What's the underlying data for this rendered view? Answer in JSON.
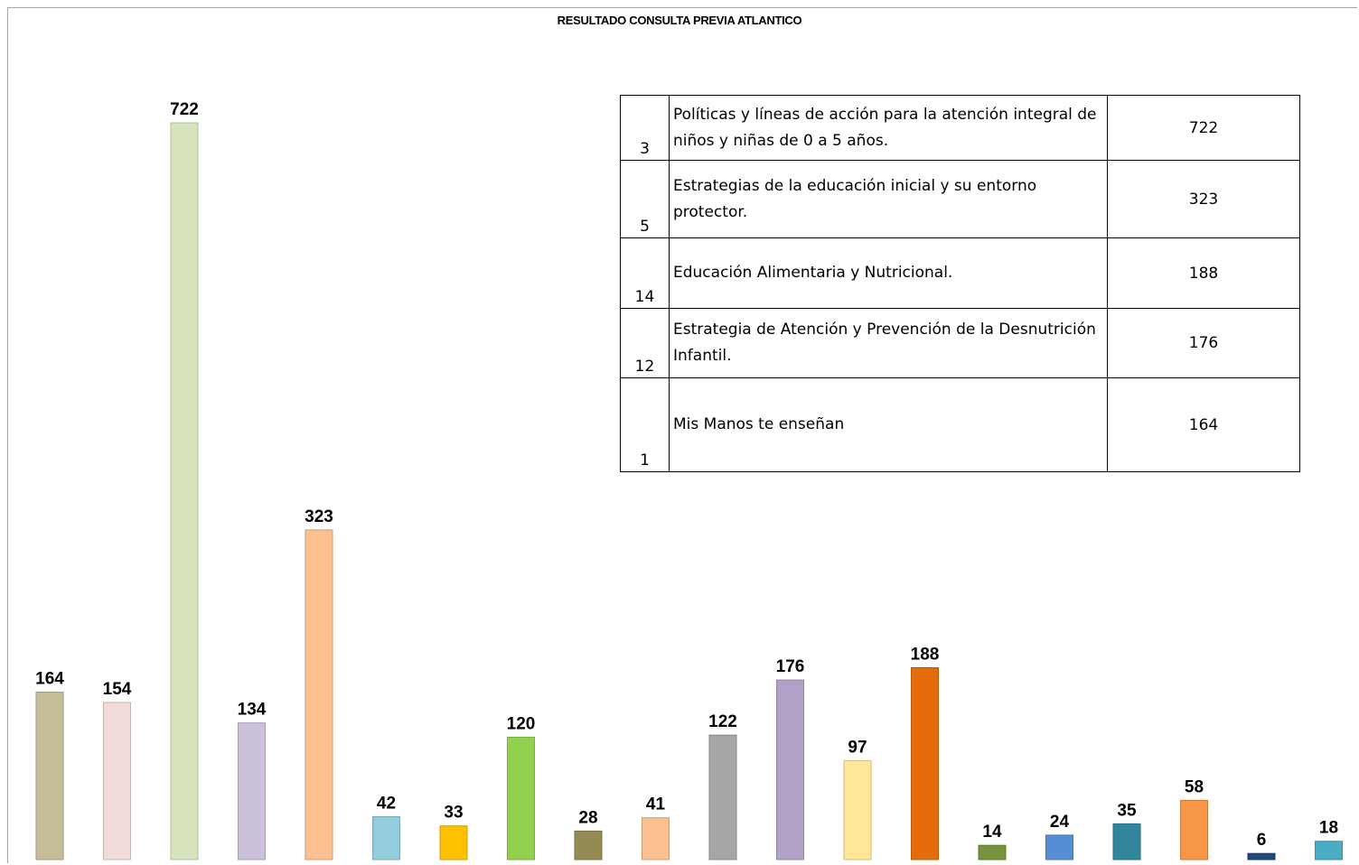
{
  "chart_data": {
    "type": "bar",
    "title": "RESULTADO CONSULTA PREVIA ATLANTICO",
    "xlabel": "",
    "ylabel": "",
    "ylim": [
      0,
      722
    ],
    "grid": false,
    "values": [
      164,
      154,
      722,
      134,
      323,
      42,
      33,
      120,
      28,
      41,
      122,
      176,
      97,
      188,
      14,
      24,
      35,
      58,
      6,
      18
    ],
    "value_labels": [
      "164",
      "154",
      "722",
      "134",
      "323",
      "42",
      "33",
      "120",
      "28",
      "41",
      "122",
      "176",
      "97",
      "188",
      "14",
      "24",
      "35",
      "58",
      "6",
      "18"
    ],
    "colors": [
      "#c4bd97",
      "#f2dcdb",
      "#d7e4bd",
      "#ccc1da",
      "#fac090",
      "#93cddd",
      "#ffc000",
      "#92d050",
      "#948a54",
      "#fac090",
      "#a6a6a6",
      "#b3a2c7",
      "#ffe699",
      "#e46c0a",
      "#77933c",
      "#558ed5",
      "#31859c",
      "#f79646",
      "#1f497d",
      "#4bacc6"
    ]
  },
  "table": {
    "rows": [
      {
        "num": "3",
        "desc": "Políticas y líneas de acción para la atención integral de niños y niñas de 0 a 5 años.",
        "value": "722"
      },
      {
        "num": "5",
        "desc": "Estrategias de la educación inicial y su entorno protector.",
        "value": "323"
      },
      {
        "num": "14",
        "desc": "Educación Alimentaria y Nutricional.",
        "value": "188"
      },
      {
        "num": "12",
        "desc": "Estrategia de Atención y Prevención de la Desnutrición Infantil.",
        "value": "176"
      },
      {
        "num": "1",
        "desc": "Mis Manos te enseñan",
        "value": "164"
      }
    ]
  }
}
